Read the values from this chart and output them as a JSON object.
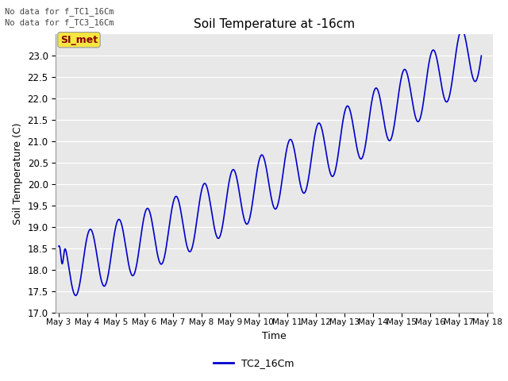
{
  "title": "Soil Temperature at -16cm",
  "xlabel": "Time",
  "ylabel": "Soil Temperature (C)",
  "line_color": "#0000cc",
  "line_label": "TC2_16Cm",
  "ylim": [
    17.0,
    23.5
  ],
  "yticks": [
    17.0,
    17.5,
    18.0,
    18.5,
    19.0,
    19.5,
    20.0,
    20.5,
    21.0,
    21.5,
    22.0,
    22.5,
    23.0
  ],
  "bg_color": "#e8e8e8",
  "no_data_text1": "No data for f_TC1_16Cm",
  "no_data_text2": "No data for f_TC3_16Cm",
  "si_met_label": "SI_met",
  "x_tick_labels": [
    "May 3",
    "May 4",
    "May 5",
    "May 6",
    "May 7",
    "May 8",
    "May 9",
    "May 10",
    "May 11",
    "May 12",
    "May 13",
    "May 14",
    "May 15",
    "May 16",
    "May 17",
    "May 18"
  ]
}
